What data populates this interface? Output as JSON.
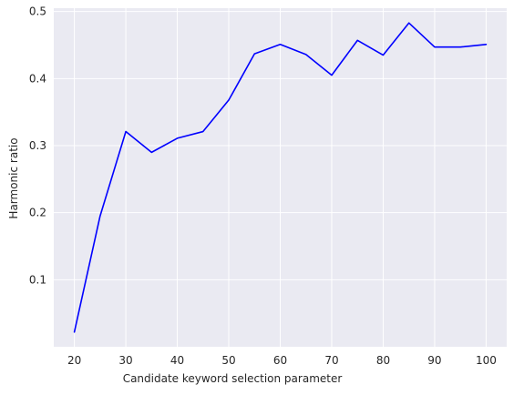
{
  "chart_data": {
    "type": "line",
    "title": "",
    "xlabel": "Candidate keyword selection parameter",
    "ylabel": "Harmonic ratio",
    "x": [
      20,
      25,
      30,
      35,
      40,
      45,
      50,
      55,
      60,
      65,
      70,
      75,
      80,
      85,
      90,
      95,
      100
    ],
    "series": [
      {
        "values": [
          0.022,
          0.195,
          0.321,
          0.29,
          0.311,
          0.321,
          0.368,
          0.437,
          0.451,
          0.436,
          0.405,
          0.457,
          0.435,
          0.483,
          0.447,
          0.447,
          0.451
        ],
        "color": "#0000ff"
      }
    ],
    "xlim": [
      16,
      104
    ],
    "ylim": [
      0.0,
      0.505
    ],
    "xticks": [
      "20",
      "30",
      "40",
      "50",
      "60",
      "70",
      "80",
      "90",
      "100"
    ],
    "yticks": [
      "0.1",
      "0.2",
      "0.3",
      "0.4",
      "0.5"
    ],
    "grid": true,
    "background": "#eaeaf2",
    "grid_color": "#ffffff"
  }
}
